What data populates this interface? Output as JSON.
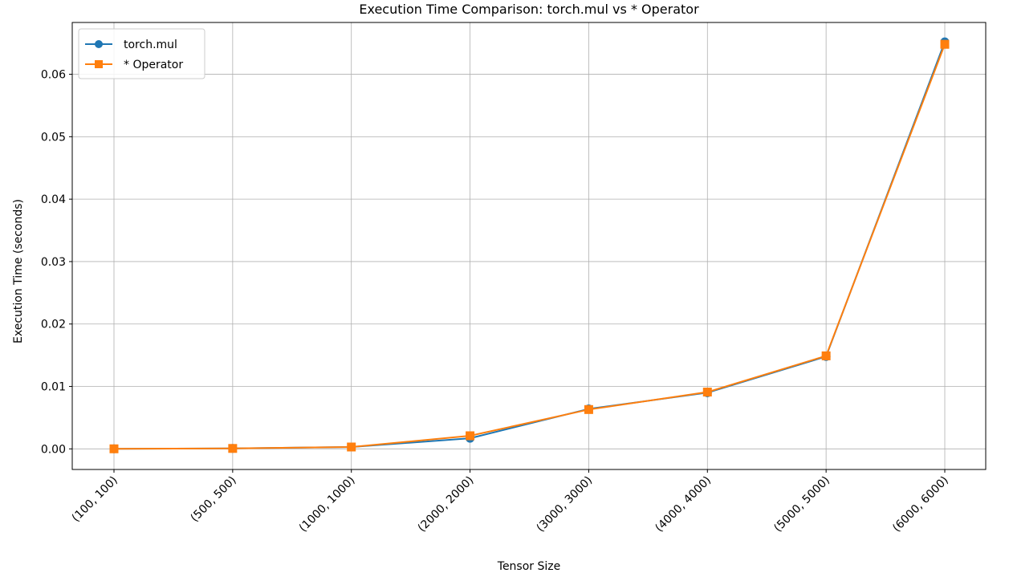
{
  "chart_data": {
    "type": "line",
    "title": "Execution Time Comparison: torch.mul vs * Operator",
    "xlabel": "Tensor Size",
    "ylabel": "Execution Time (seconds)",
    "categories": [
      "(100, 100)",
      "(500, 500)",
      "(1000, 1000)",
      "(2000, 2000)",
      "(3000, 3000)",
      "(4000, 4000)",
      "(5000, 5000)",
      "(6000, 6000)"
    ],
    "ylim": [
      -0.0033,
      0.0683
    ],
    "yticks": [
      0.0,
      0.01,
      0.02,
      0.03,
      0.04,
      0.05,
      0.06
    ],
    "ytick_labels": [
      "0.00",
      "0.01",
      "0.02",
      "0.03",
      "0.04",
      "0.05",
      "0.06"
    ],
    "grid": true,
    "legend_position": "top-left",
    "series": [
      {
        "name": "torch.mul",
        "marker": "circle",
        "color": "#1f77b4",
        "values": [
          1e-05,
          8e-05,
          0.0003,
          0.0017,
          0.0064,
          0.009,
          0.0148,
          0.0652
        ]
      },
      {
        "name": "* Operator",
        "marker": "square",
        "color": "#ff7f0e",
        "values": [
          1e-05,
          7e-05,
          0.0003,
          0.0021,
          0.0063,
          0.0091,
          0.0149,
          0.0648
        ]
      }
    ]
  }
}
